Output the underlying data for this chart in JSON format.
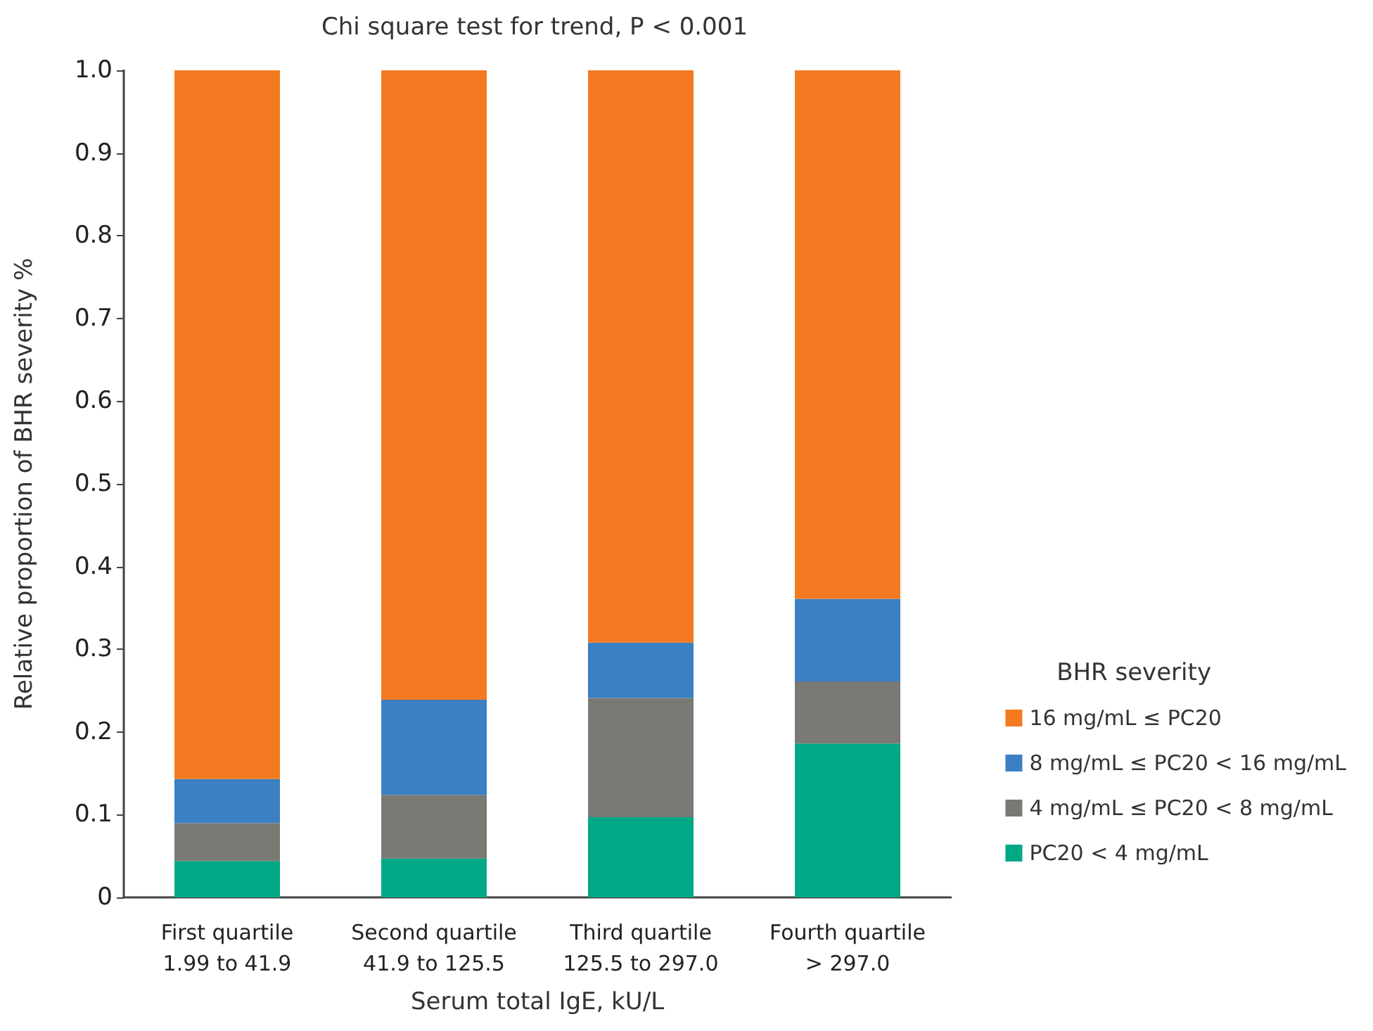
{
  "chart_data": {
    "type": "bar",
    "stacked": true,
    "title": "Chi square test for trend, P < 0.001",
    "xlabel": "Serum total IgE, kU/L",
    "ylabel": "Relative proportion of BHR severity %",
    "legend_title": "BHR severity",
    "categories": [
      "First quartile\n1.99 to 41.9",
      "Second quartile\n41.9 to 125.5",
      "Third quartile\n125.5 to 297.0",
      "Fourth quartile\n> 297.0"
    ],
    "series": [
      {
        "name": "PC20 < 4 mg/mL",
        "color": "#00a886",
        "values": [
          0.044,
          0.047,
          0.097,
          0.186
        ]
      },
      {
        "name": "4 mg/mL ≤ PC20 < 8 mg/mL",
        "color": "#797a74",
        "values": [
          0.046,
          0.077,
          0.144,
          0.075
        ]
      },
      {
        "name": "8 mg/mL ≤ PC20 < 16 mg/mL",
        "color": "#3a80c3",
        "values": [
          0.053,
          0.115,
          0.067,
          0.1
        ]
      },
      {
        "name": "16 mg/mL ≤ PC20",
        "color": "#f47a22",
        "values": [
          0.857,
          0.761,
          0.692,
          0.639
        ]
      }
    ],
    "ylim": [
      0,
      1
    ],
    "yticks": [
      0,
      0.1,
      0.2,
      0.3,
      0.4,
      0.5,
      0.6,
      0.7,
      0.8,
      0.9,
      {
        "value": 1,
        "label": "1.0"
      }
    ],
    "grid": false,
    "legend": "right"
  }
}
